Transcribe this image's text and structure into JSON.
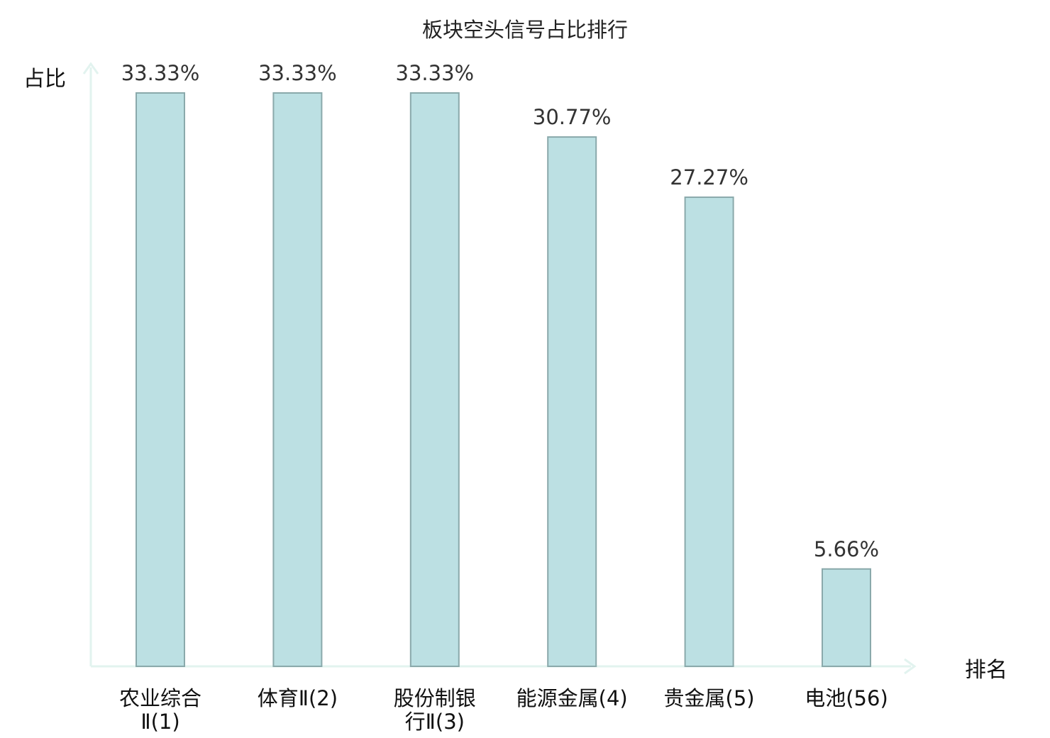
{
  "chart_data": {
    "type": "bar",
    "title": "板块空头信号占比排行",
    "ylabel": "占比",
    "xlabel": "排名",
    "ylim": [
      0,
      35
    ],
    "grid": false,
    "categories": [
      "农业综合Ⅱ(1)",
      "体育Ⅱ(2)",
      "股份制银行Ⅱ(3)",
      "能源金属(4)",
      "贵金属(5)",
      "电池(56)"
    ],
    "category_label_lines": [
      [
        "农业综合",
        "Ⅱ(1)"
      ],
      [
        "体育Ⅱ(2)"
      ],
      [
        "股份制银",
        "行Ⅱ(3)"
      ],
      [
        "能源金属(4)"
      ],
      [
        "贵金属(5)"
      ],
      [
        "电池(56)"
      ]
    ],
    "values": [
      33.33,
      33.33,
      33.33,
      30.77,
      27.27,
      5.66
    ],
    "value_labels": [
      "33.33%",
      "33.33%",
      "33.33%",
      "30.77%",
      "27.27%",
      "5.66%"
    ],
    "highlight_index": 5
  },
  "colors": {
    "bar_fill": "#bce0e3",
    "bar_stroke": "#8aa9ab",
    "axis": "#e2f3ef",
    "highlight_text": "#e8141b",
    "label_text": "#111111",
    "value_text": "#333333"
  }
}
